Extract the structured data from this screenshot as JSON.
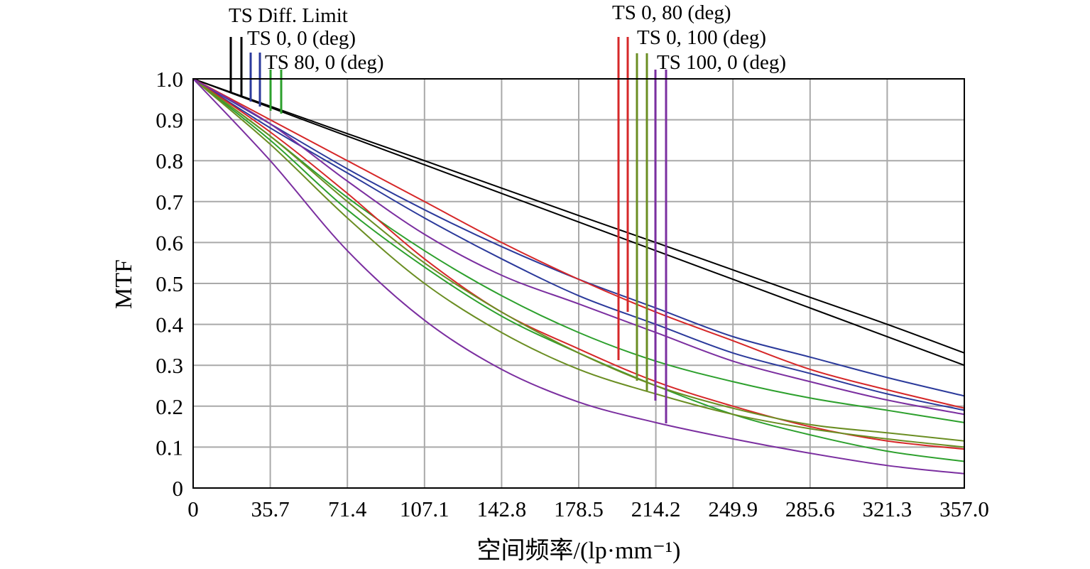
{
  "chart_data": {
    "type": "line",
    "title": "",
    "xlabel": "空间频率/(lp·mm⁻¹)",
    "ylabel": "MTF",
    "xlim": [
      0,
      357.0
    ],
    "ylim": [
      0,
      1.0
    ],
    "grid": true,
    "x_ticks": [
      "0",
      "35.7",
      "71.4",
      "107.1",
      "142.8",
      "178.5",
      "214.2",
      "249.9",
      "285.6",
      "321.3",
      "357.0"
    ],
    "y_ticks": [
      "0",
      "0.1",
      "0.2",
      "0.3",
      "0.4",
      "0.5",
      "0.6",
      "0.7",
      "0.8",
      "0.9",
      "1.0"
    ],
    "x": [
      0,
      35.7,
      71.4,
      107.1,
      142.8,
      178.5,
      214.2,
      249.9,
      285.6,
      321.3,
      357.0
    ],
    "legend": [
      {
        "label": "TS Diff. Limit",
        "colors": [
          "#000000",
          "#000000"
        ]
      },
      {
        "label": "TS 0, 0 (deg)",
        "colors": [
          "#2b3a9b",
          "#2b3a9b"
        ]
      },
      {
        "label": "TS 80, 0 (deg)",
        "colors": [
          "#2da02d",
          "#2da02d"
        ]
      },
      {
        "label": "TS 0, 80 (deg)",
        "colors": [
          "#d62728",
          "#d62728"
        ]
      },
      {
        "label": "TS 0, 100 (deg)",
        "colors": [
          "#6b8e23",
          "#6b8e23"
        ]
      },
      {
        "label": "TS 100, 0 (deg)",
        "colors": [
          "#7b2fa0",
          "#7b2fa0"
        ]
      }
    ],
    "series": [
      {
        "name": "TS Diff. Limit",
        "color": "#000000",
        "values": [
          1.0,
          0.93,
          0.86,
          0.79,
          0.72,
          0.65,
          0.58,
          0.51,
          0.44,
          0.37,
          0.3
        ]
      },
      {
        "name": "TS Diff. Limit",
        "color": "#000000",
        "values": [
          1.0,
          0.933,
          0.866,
          0.8,
          0.733,
          0.666,
          0.6,
          0.533,
          0.466,
          0.4,
          0.33
        ]
      },
      {
        "name": "TS 0, 0 (deg)",
        "color": "#2b3a9b",
        "values": [
          1.0,
          0.88,
          0.77,
          0.66,
          0.56,
          0.47,
          0.4,
          0.33,
          0.28,
          0.23,
          0.19
        ]
      },
      {
        "name": "TS 0, 0 (deg)",
        "color": "#2b3a9b",
        "values": [
          1.0,
          0.89,
          0.78,
          0.68,
          0.59,
          0.51,
          0.44,
          0.37,
          0.32,
          0.27,
          0.225
        ]
      },
      {
        "name": "TS 80, 0 (deg)",
        "color": "#2da02d",
        "values": [
          1.0,
          0.86,
          0.71,
          0.58,
          0.47,
          0.38,
          0.31,
          0.26,
          0.22,
          0.19,
          0.16
        ]
      },
      {
        "name": "TS 80, 0 (deg)",
        "color": "#2da02d",
        "values": [
          1.0,
          0.85,
          0.68,
          0.54,
          0.42,
          0.33,
          0.25,
          0.18,
          0.13,
          0.09,
          0.065
        ]
      },
      {
        "name": "TS 0, 80 (deg)",
        "color": "#d62728",
        "values": [
          1.0,
          0.9,
          0.8,
          0.7,
          0.6,
          0.51,
          0.43,
          0.36,
          0.29,
          0.24,
          0.195
        ]
      },
      {
        "name": "TS 0, 80 (deg)",
        "color": "#d62728",
        "values": [
          1.0,
          0.87,
          0.72,
          0.56,
          0.43,
          0.34,
          0.26,
          0.2,
          0.15,
          0.115,
          0.095
        ]
      },
      {
        "name": "TS 0, 100 (deg)",
        "color": "#6b8e23",
        "values": [
          1.0,
          0.84,
          0.66,
          0.5,
          0.38,
          0.29,
          0.23,
          0.18,
          0.145,
          0.12,
          0.1
        ]
      },
      {
        "name": "TS 0, 100 (deg)",
        "color": "#6b8e23",
        "values": [
          1.0,
          0.86,
          0.7,
          0.55,
          0.43,
          0.33,
          0.25,
          0.195,
          0.155,
          0.135,
          0.115
        ]
      },
      {
        "name": "TS 100, 0 (deg)",
        "color": "#7b2fa0",
        "values": [
          1.0,
          0.89,
          0.75,
          0.62,
          0.52,
          0.45,
          0.38,
          0.31,
          0.26,
          0.215,
          0.18
        ]
      },
      {
        "name": "TS 100, 0 (deg)",
        "color": "#7b2fa0",
        "values": [
          1.0,
          0.8,
          0.58,
          0.41,
          0.29,
          0.21,
          0.16,
          0.12,
          0.085,
          0.055,
          0.035
        ]
      }
    ]
  }
}
